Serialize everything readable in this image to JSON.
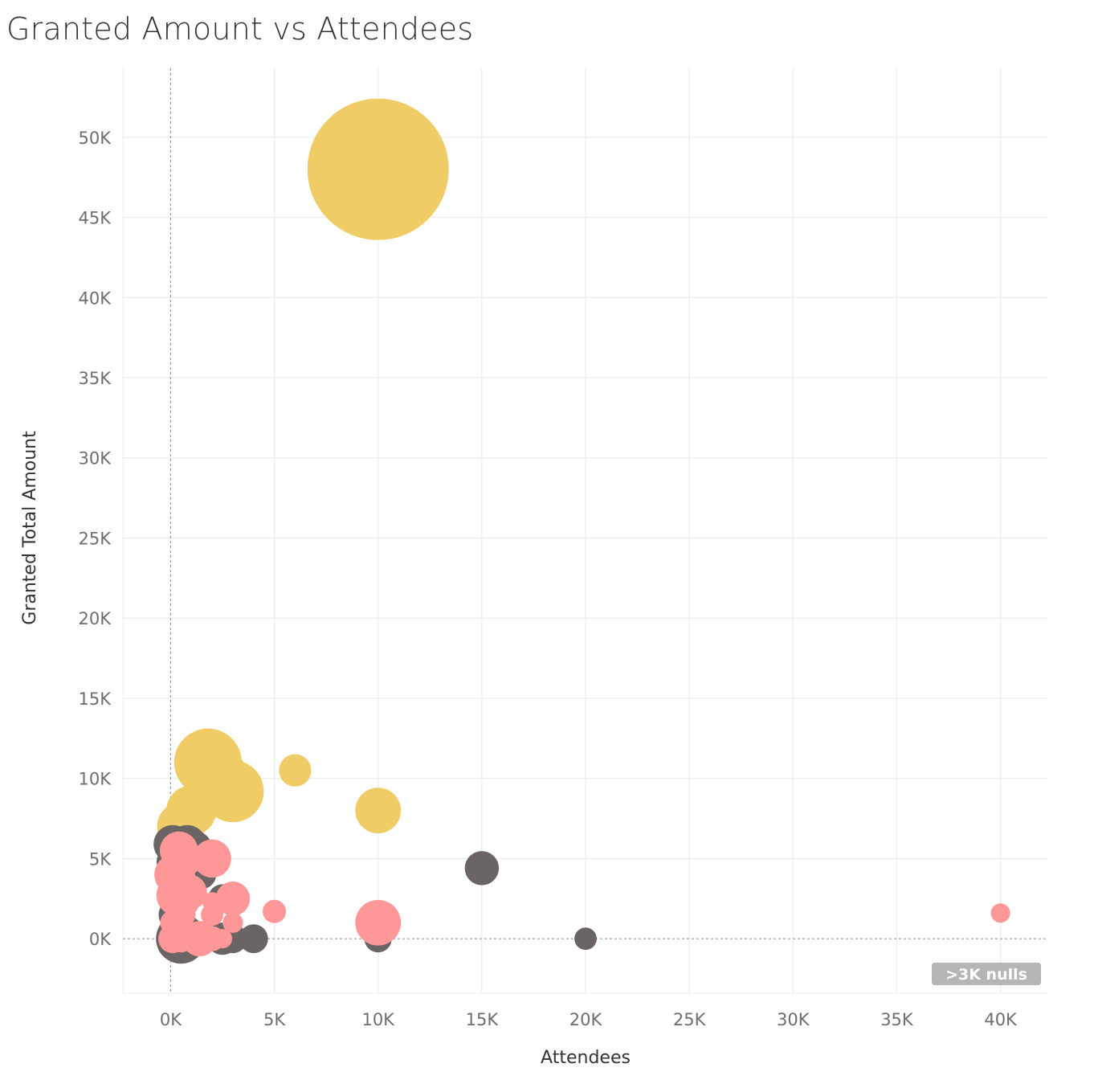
{
  "chart_data": {
    "type": "scatter",
    "title": "Granted Amount vs Attendees",
    "xlabel": "Attendees",
    "ylabel": "Granted Total Amount",
    "xlim": [
      -2300,
      42300
    ],
    "ylim": [
      -3400,
      54300
    ],
    "x_ticks": [
      0,
      5000,
      10000,
      15000,
      20000,
      25000,
      30000,
      35000,
      40000
    ],
    "x_tick_labels": [
      "0K",
      "5K",
      "10K",
      "15K",
      "20K",
      "25K",
      "30K",
      "35K",
      "40K"
    ],
    "y_ticks": [
      0,
      5000,
      10000,
      15000,
      20000,
      25000,
      30000,
      35000,
      40000,
      45000,
      50000
    ],
    "y_tick_labels": [
      "0K",
      "5K",
      "10K",
      "15K",
      "20K",
      "25K",
      "30K",
      "35K",
      "40K",
      "45K",
      "50K"
    ],
    "grid": true,
    "colors": {
      "gold": "#f0cc66",
      "dark": "#6b6464",
      "pink": "#fe9797",
      "grid": "#ececec",
      "zero_line": "#999999",
      "badge": "#b5b5b5"
    },
    "series": [
      {
        "color_key": "gold",
        "points": [
          {
            "x": 10000,
            "y": 48000,
            "size": 48000
          },
          {
            "x": 1800,
            "y": 11000,
            "size": 11000
          },
          {
            "x": 2600,
            "y": 10500,
            "size": 4000
          },
          {
            "x": 3000,
            "y": 9200,
            "size": 9200
          },
          {
            "x": 6000,
            "y": 10500,
            "size": 2500
          },
          {
            "x": 1000,
            "y": 8000,
            "size": 6000
          },
          {
            "x": 10000,
            "y": 8000,
            "size": 5000
          },
          {
            "x": 500,
            "y": 7000,
            "size": 5500
          },
          {
            "x": 1400,
            "y": 5500,
            "size": 2000
          },
          {
            "x": 200,
            "y": 6000,
            "size": 2500
          }
        ]
      },
      {
        "color_key": "dark",
        "points": [
          {
            "x": 100,
            "y": 5900,
            "size": 3500
          },
          {
            "x": 800,
            "y": 5900,
            "size": 3500
          },
          {
            "x": 1200,
            "y": 5700,
            "size": 2500
          },
          {
            "x": 100,
            "y": 4800,
            "size": 2500
          },
          {
            "x": 900,
            "y": 4000,
            "size": 3000
          },
          {
            "x": 1500,
            "y": 4000,
            "size": 2000
          },
          {
            "x": 500,
            "y": 3000,
            "size": 3000
          },
          {
            "x": 200,
            "y": 1500,
            "size": 2500
          },
          {
            "x": 500,
            "y": 0,
            "size": 6000
          },
          {
            "x": 2500,
            "y": 0,
            "size": 2500
          },
          {
            "x": 3000,
            "y": 0,
            "size": 2000
          },
          {
            "x": 4000,
            "y": 0,
            "size": 2000
          },
          {
            "x": 10000,
            "y": 0,
            "size": 1800
          },
          {
            "x": 20000,
            "y": 0,
            "size": 1200
          },
          {
            "x": 15000,
            "y": 4400,
            "size": 2800
          },
          {
            "x": 2500,
            "y": 2500,
            "size": 2000
          },
          {
            "x": 2000,
            "y": 4800,
            "size": 1500
          }
        ]
      },
      {
        "color_key": "pink",
        "points": [
          {
            "x": 400,
            "y": 5500,
            "size": 3500
          },
          {
            "x": 800,
            "y": 5000,
            "size": 2500
          },
          {
            "x": 2000,
            "y": 5000,
            "size": 3500
          },
          {
            "x": 200,
            "y": 4000,
            "size": 4000
          },
          {
            "x": 300,
            "y": 2700,
            "size": 4000
          },
          {
            "x": 900,
            "y": 2900,
            "size": 3000
          },
          {
            "x": 600,
            "y": 2300,
            "size": 2500
          },
          {
            "x": 3000,
            "y": 2500,
            "size": 2800
          },
          {
            "x": 2000,
            "y": 2300,
            "size": 900
          },
          {
            "x": 2000,
            "y": 1500,
            "size": 1200
          },
          {
            "x": 3000,
            "y": 1000,
            "size": 1000
          },
          {
            "x": 600,
            "y": 1500,
            "size": 1500
          },
          {
            "x": 100,
            "y": 1000,
            "size": 1500
          },
          {
            "x": 5000,
            "y": 1700,
            "size": 1300
          },
          {
            "x": 10000,
            "y": 1000,
            "size": 5000
          },
          {
            "x": 40000,
            "y": 1600,
            "size": 900
          },
          {
            "x": 100,
            "y": 0,
            "size": 2000
          },
          {
            "x": 1400,
            "y": 0,
            "size": 3000
          },
          {
            "x": 2000,
            "y": 0,
            "size": 1500
          },
          {
            "x": 2500,
            "y": 0,
            "size": 900
          },
          {
            "x": 500,
            "y": 0,
            "size": 1800
          }
        ]
      }
    ],
    "annotation": {
      "text": ">3K nulls",
      "placement": "bottom-right"
    }
  }
}
